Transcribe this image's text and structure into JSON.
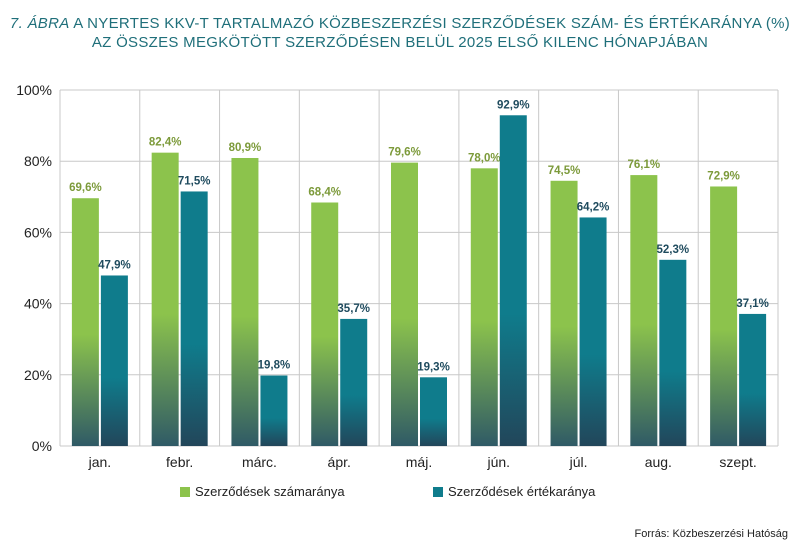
{
  "title": {
    "figure_label": "7. ÁBRA",
    "line1_rest": "A NYERTES KKV-T TARTALMAZÓ KÖZBESZERZÉSI SZERZŐDÉSEK SZÁM- ÉS ÉRTÉKARÁNYA (%)",
    "line2": "AZ ÖSSZES MEGKÖTÖTT SZERZŐDÉSEN BELÜL 2025 ELSŐ KILENC HÓNAPJÁBAN"
  },
  "source": "Forrás: Közbeszerzési Hatóság",
  "colors": {
    "green": "#8cc34c",
    "teal": "#0f7c8c",
    "green_label": "#7c9a3a",
    "teal_label": "#1f4b5e",
    "grid": "#c8c8c8",
    "title": "#1f6f7a"
  },
  "chart_data": {
    "type": "bar",
    "categories": [
      "jan.",
      "febr.",
      "márc.",
      "ápr.",
      "máj.",
      "jún.",
      "júl.",
      "aug.",
      "szept."
    ],
    "series": [
      {
        "name": "Szerződések számaránya",
        "values": [
          69.6,
          82.4,
          80.9,
          68.4,
          79.6,
          78.0,
          74.5,
          76.1,
          72.9
        ],
        "labels": [
          "69,6%",
          "82,4%",
          "80,9%",
          "68,4%",
          "79,6%",
          "78,0%",
          "74,5%",
          "76,1%",
          "72,9%"
        ]
      },
      {
        "name": "Szerződések értékaránya",
        "values": [
          47.9,
          71.5,
          19.8,
          35.7,
          19.3,
          92.9,
          64.2,
          52.3,
          37.1
        ],
        "labels": [
          "47,9%",
          "71,5%",
          "19,8%",
          "35,7%",
          "19,3%",
          "92,9%",
          "64,2%",
          "52,3%",
          "37,1%"
        ]
      }
    ],
    "ylim": [
      0,
      100
    ],
    "yticks": [
      0,
      20,
      40,
      60,
      80,
      100
    ],
    "ytick_labels": [
      "0%",
      "20%",
      "40%",
      "60%",
      "80%",
      "100%"
    ],
    "grid": true,
    "legend_position": "bottom"
  }
}
